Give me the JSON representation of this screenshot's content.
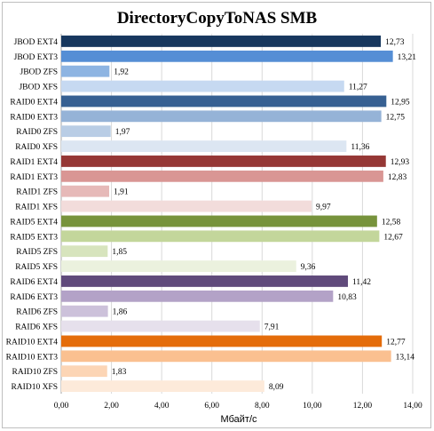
{
  "chart_data": {
    "type": "bar",
    "orientation": "horizontal",
    "title": "DirectoryCopyToNAS SMB",
    "xlabel": "Мбайт/с",
    "ylabel": "",
    "xlim": [
      0,
      14
    ],
    "x_ticks": [
      "0,00",
      "2,00",
      "4,00",
      "6,00",
      "8,00",
      "10,00",
      "12,00",
      "14,00"
    ],
    "grid": true,
    "legend": "none",
    "categories": [
      "JBOD EXT4",
      "JBOD EXT3",
      "JBOD ZFS",
      "JBOD XFS",
      "RAID0 EXT4",
      "RAID0 EXT3",
      "RAID0 ZFS",
      "RAID0 XFS",
      "RAID1 EXT4",
      "RAID1 EXT3",
      "RAID1 ZFS",
      "RAID1 XFS",
      "RAID5 EXT4",
      "RAID5 EXT3",
      "RAID5 ZFS",
      "RAID5 XFS",
      "RAID6 EXT4",
      "RAID6 EXT3",
      "RAID6 ZFS",
      "RAID6 XFS",
      "RAID10 EXT4",
      "RAID10 EXT3",
      "RAID10 ZFS",
      "RAID10 XFS"
    ],
    "values": [
      12.73,
      13.21,
      1.92,
      11.27,
      12.95,
      12.75,
      1.97,
      11.36,
      12.93,
      12.83,
      1.91,
      9.97,
      12.58,
      12.67,
      1.85,
      9.36,
      11.42,
      10.83,
      1.86,
      7.91,
      12.77,
      13.14,
      1.83,
      8.09
    ],
    "value_labels": [
      "12,73",
      "13,21",
      "1,92",
      "11,27",
      "12,95",
      "12,75",
      "1,97",
      "11,36",
      "12,93",
      "12,83",
      "1,91",
      "9,97",
      "12,58",
      "12,67",
      "1,85",
      "9,36",
      "11,42",
      "10,83",
      "1,86",
      "7,91",
      "12,77",
      "13,14",
      "1,83",
      "8,09"
    ],
    "colors": [
      "#17375e",
      "#558ed5",
      "#8db4e2",
      "#c6d9f1",
      "#376092",
      "#95b3d7",
      "#b9cde5",
      "#dce6f2",
      "#953735",
      "#d99694",
      "#e6b9b8",
      "#f2dcdb",
      "#77933c",
      "#c3d69b",
      "#d7e4bd",
      "#ebf1de",
      "#604a7b",
      "#b3a2c7",
      "#ccc1da",
      "#e6e0ec",
      "#e46c0a",
      "#fac090",
      "#fcd5b5",
      "#fdeada"
    ]
  }
}
